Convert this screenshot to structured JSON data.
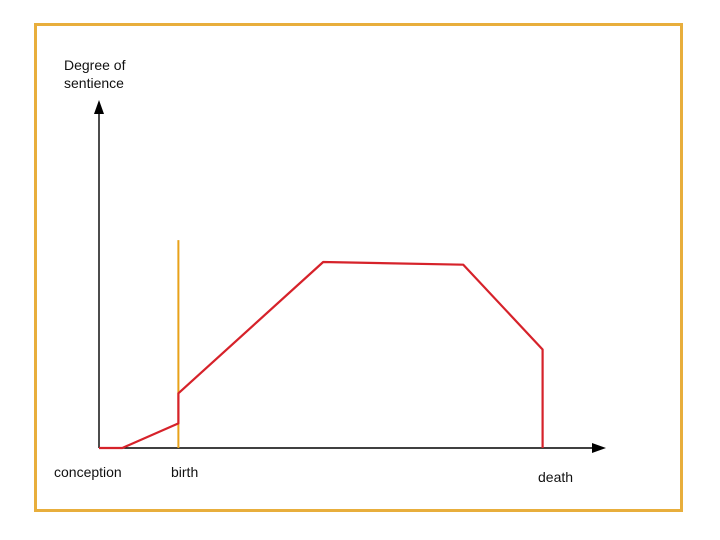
{
  "colors": {
    "frame": "#e8ae3c",
    "curve": "#d6222a",
    "birth_marker": "#e8a21a",
    "axes": "#000000"
  },
  "chart_data": {
    "type": "line",
    "title": "",
    "ylabel_line1": "Degree of",
    "ylabel_line2": "sentience",
    "xlabel": "",
    "x_labels": {
      "conception": "conception",
      "birth": "birth",
      "death": "death"
    },
    "xlim": [
      0,
      100
    ],
    "ylim": [
      0,
      100
    ],
    "grid": false,
    "legend": "none",
    "birth_x": 17,
    "birth_marker_top": 76,
    "series": [
      {
        "x": [
          0,
          5,
          17,
          17,
          48,
          78,
          95,
          95
        ],
        "y": [
          0,
          0,
          9,
          20,
          68,
          67,
          36,
          0
        ]
      }
    ]
  }
}
